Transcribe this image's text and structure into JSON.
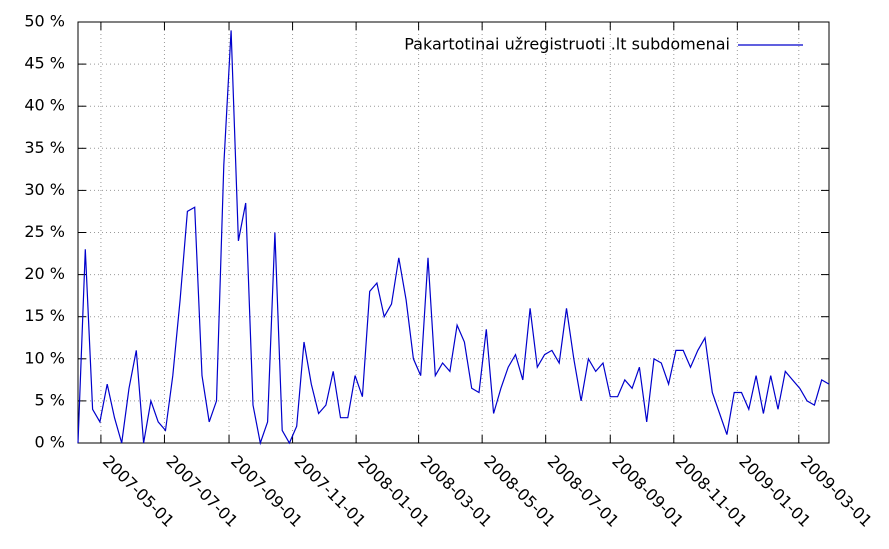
{
  "chart_data": {
    "type": "line",
    "x": [
      "2007-04-09",
      "2007-04-16",
      "2007-04-23",
      "2007-04-30",
      "2007-05-07",
      "2007-05-14",
      "2007-05-21",
      "2007-05-28",
      "2007-06-04",
      "2007-06-11",
      "2007-06-18",
      "2007-06-25",
      "2007-07-02",
      "2007-07-09",
      "2007-07-16",
      "2007-07-23",
      "2007-07-30",
      "2007-08-06",
      "2007-08-13",
      "2007-08-20",
      "2007-08-27",
      "2007-09-03",
      "2007-09-10",
      "2007-09-17",
      "2007-09-24",
      "2007-10-01",
      "2007-10-08",
      "2007-10-15",
      "2007-10-22",
      "2007-10-29",
      "2007-11-05",
      "2007-11-12",
      "2007-11-19",
      "2007-11-26",
      "2007-12-03",
      "2007-12-10",
      "2007-12-17",
      "2007-12-24",
      "2007-12-31",
      "2008-01-07",
      "2008-01-14",
      "2008-01-21",
      "2008-01-28",
      "2008-02-04",
      "2008-02-11",
      "2008-02-18",
      "2008-02-25",
      "2008-03-03",
      "2008-03-10",
      "2008-03-17",
      "2008-03-24",
      "2008-03-31",
      "2008-04-07",
      "2008-04-14",
      "2008-04-21",
      "2008-04-28",
      "2008-05-05",
      "2008-05-12",
      "2008-05-19",
      "2008-05-26",
      "2008-06-02",
      "2008-06-09",
      "2008-06-16",
      "2008-06-23",
      "2008-06-30",
      "2008-07-07",
      "2008-07-14",
      "2008-07-21",
      "2008-07-28",
      "2008-08-04",
      "2008-08-11",
      "2008-08-18",
      "2008-08-25",
      "2008-09-01",
      "2008-09-08",
      "2008-09-15",
      "2008-09-22",
      "2008-09-29",
      "2008-10-06",
      "2008-10-13",
      "2008-10-20",
      "2008-10-27",
      "2008-11-03",
      "2008-11-10",
      "2008-11-17",
      "2008-11-24",
      "2008-12-01",
      "2008-12-08",
      "2008-12-15",
      "2008-12-22",
      "2008-12-29",
      "2009-01-05",
      "2009-01-12",
      "2009-01-19",
      "2009-01-26",
      "2009-02-02",
      "2009-02-09",
      "2009-02-16",
      "2009-02-23",
      "2009-03-02",
      "2009-03-09",
      "2009-03-16",
      "2009-03-23",
      "2009-03-30"
    ],
    "series": [
      {
        "name": "Pakartotinai užregistruoti .lt subdomenai",
        "color": "#0000cc",
        "values": [
          0,
          23,
          4,
          2.5,
          7,
          3,
          0,
          6.5,
          11,
          0,
          5,
          2.5,
          1.5,
          8,
          17,
          27.5,
          28,
          8,
          2.5,
          5,
          33,
          49,
          24,
          28.5,
          4.5,
          0,
          2.5,
          25,
          1.5,
          0,
          2,
          12,
          7,
          3.5,
          4.5,
          8.5,
          3,
          3,
          8,
          5.5,
          18,
          19,
          15,
          16.5,
          22,
          17,
          10,
          8,
          22,
          8,
          9.5,
          8.5,
          14,
          12,
          6.5,
          6,
          13.5,
          3.5,
          6.5,
          9,
          10.5,
          7.5,
          16,
          9,
          10.5,
          11,
          9.5,
          16,
          10,
          5,
          10,
          8.5,
          9.5,
          5.5,
          5.5,
          7.5,
          6.5,
          9,
          2.5,
          10,
          9.5,
          7,
          11,
          11,
          9,
          11,
          12.5,
          6,
          3.5,
          1,
          6,
          6,
          4,
          8,
          3.5,
          8,
          4,
          8.5,
          7.5,
          6.5,
          5,
          4.5,
          7.5,
          7
        ]
      }
    ],
    "xlim": [
      "2007-04-09",
      "2009-03-30"
    ],
    "xticks": [
      "2007-05-01",
      "2007-07-01",
      "2007-09-01",
      "2007-11-01",
      "2008-01-01",
      "2008-03-01",
      "2008-05-01",
      "2008-07-01",
      "2008-09-01",
      "2008-11-01",
      "2009-01-01",
      "2009-03-01"
    ],
    "ylim": [
      0,
      50
    ],
    "yticks": [
      {
        "value": 0,
        "label": "0 %"
      },
      {
        "value": 5,
        "label": "5 %"
      },
      {
        "value": 10,
        "label": "10 %"
      },
      {
        "value": 15,
        "label": "15 %"
      },
      {
        "value": 20,
        "label": "20 %"
      },
      {
        "value": 25,
        "label": "25 %"
      },
      {
        "value": 30,
        "label": "30 %"
      },
      {
        "value": 35,
        "label": "35 %"
      },
      {
        "value": 40,
        "label": "40 %"
      },
      {
        "value": 45,
        "label": "45 %"
      },
      {
        "value": 50,
        "label": "50 %"
      }
    ],
    "grid": true,
    "legend": "top-right"
  }
}
